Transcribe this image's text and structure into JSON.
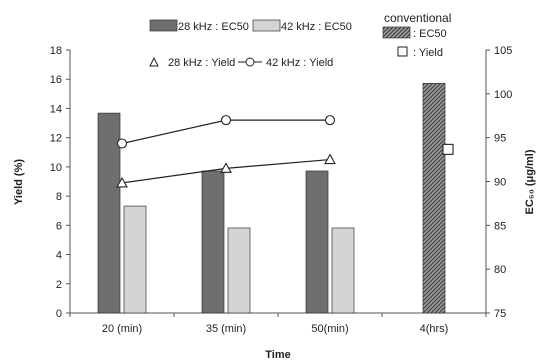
{
  "chart_data": {
    "type": "bar",
    "categories": [
      "20 (min)",
      "35 (min)",
      "50(min)",
      "4(hrs)"
    ],
    "xlabel": "Time",
    "ylabel_left": "Yield (%)",
    "ylabel_right": "EC₅₀ (μg/ml)",
    "ylim_left": [
      0,
      18
    ],
    "yticks_left": [
      0,
      2,
      4,
      6,
      8,
      10,
      12,
      14,
      16,
      18
    ],
    "ylim_right": [
      75,
      105
    ],
    "yticks_right": [
      75,
      80,
      85,
      90,
      95,
      100,
      105
    ],
    "grid": false,
    "bars": [
      {
        "name": "28 kHz : EC50",
        "axis": "right",
        "color": "#6f6f6f",
        "values": [
          97.8,
          null,
          null,
          null
        ],
        "values_all": [
          97.8,
          91.2,
          91.2,
          null
        ]
      },
      {
        "name": "42 kHz : EC50",
        "axis": "right",
        "color": "#d4d4d4",
        "values_all": [
          87.2,
          84.7,
          84.7,
          null
        ]
      },
      {
        "name": "conventional : EC50",
        "axis": "right",
        "color": "#8a8a8a",
        "hatched": true,
        "values_all": [
          null,
          null,
          null,
          101.2
        ]
      }
    ],
    "lines": [
      {
        "name": "28 kHz : Yield",
        "axis": "left",
        "marker": "triangle",
        "values": [
          8.9,
          9.9,
          10.5,
          null
        ]
      },
      {
        "name": "42 kHz : Yield",
        "axis": "left",
        "marker": "circle",
        "values": [
          11.6,
          13.2,
          13.2,
          null
        ]
      }
    ],
    "points": [
      {
        "name": "conventional : Yield",
        "axis": "left",
        "marker": "square",
        "category": "4(hrs)",
        "value": 11.2
      }
    ]
  },
  "legend": {
    "bar28": "28 kHz : EC50",
    "bar42": "42 kHz : EC50",
    "line28": "28 kHz : Yield",
    "line42": "42 kHz : Yield",
    "conventional_title": "conventional",
    "conv_ec50": ": EC50",
    "conv_yield": ": Yield"
  }
}
